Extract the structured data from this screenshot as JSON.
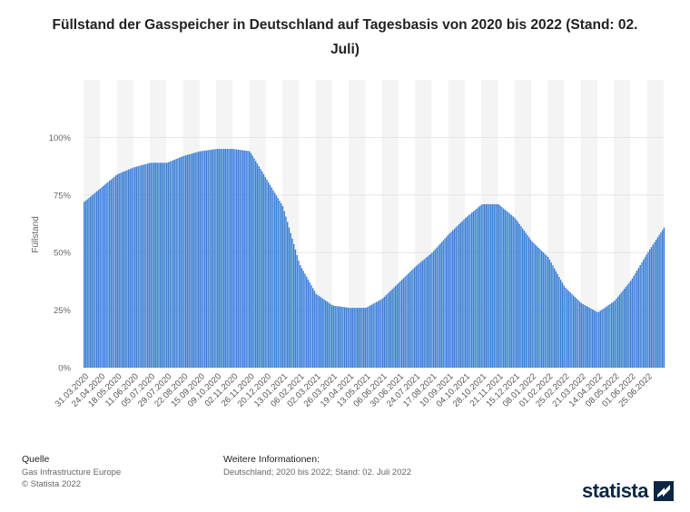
{
  "title": "Füllstand der Gasspeicher in Deutschland auf Tagesbasis von 2020 bis 2022 (Stand: 02. Juli)",
  "footer": {
    "source_heading": "Quelle",
    "source_line1": "Gas Infrastructure Europe",
    "source_line2": "© Statista 2022",
    "info_heading": "Weitere Informationen:",
    "info_line1": "Deutschland; 2020 bis 2022; Stand: 02. Juli 2022"
  },
  "brand": "statista",
  "colors": {
    "bar": "#3a7fd6",
    "band": "#f4f4f4",
    "grid": "#e6e6e6"
  },
  "chart_data": {
    "type": "bar",
    "title": "Füllstand der Gasspeicher in Deutschland auf Tagesbasis von 2020 bis 2022 (Stand: 02. Juli)",
    "ylabel": "Füllstand",
    "xlabel": "",
    "ylim": [
      0,
      125
    ],
    "yticks": [
      "0%",
      "25%",
      "50%",
      "75%",
      "100%"
    ],
    "ytick_values": [
      0,
      25,
      50,
      75,
      100
    ],
    "grid": true,
    "categories": [
      "31.03.2020",
      "24.04.2020",
      "18.05.2020",
      "11.06.2020",
      "05.07.2020",
      "29.07.2020",
      "22.08.2020",
      "15.09.2020",
      "09.10.2020",
      "02.11.2020",
      "26.11.2020",
      "20.12.2020",
      "13.01.2021",
      "06.02.2021",
      "02.03.2021",
      "26.03.2021",
      "19.04.2021",
      "13.05.2021",
      "06.06.2021",
      "30.06.2021",
      "24.07.2021",
      "17.08.2021",
      "10.09.2021",
      "04.10.2021",
      "28.10.2021",
      "21.11.2021",
      "15.12.2021",
      "08.01.2022",
      "01.02.2022",
      "25.02.2022",
      "21.03.2022",
      "14.04.2022",
      "08.05.2022",
      "01.06.2022",
      "25.06.2022"
    ],
    "values": [
      72,
      78,
      84,
      87,
      89,
      89,
      92,
      94,
      95,
      95,
      94,
      82,
      70,
      45,
      32,
      27,
      26,
      26,
      30,
      37,
      44,
      50,
      58,
      65,
      71,
      71,
      65,
      55,
      48,
      35,
      28,
      24,
      29,
      38,
      50
    ],
    "final_value": 61
  }
}
